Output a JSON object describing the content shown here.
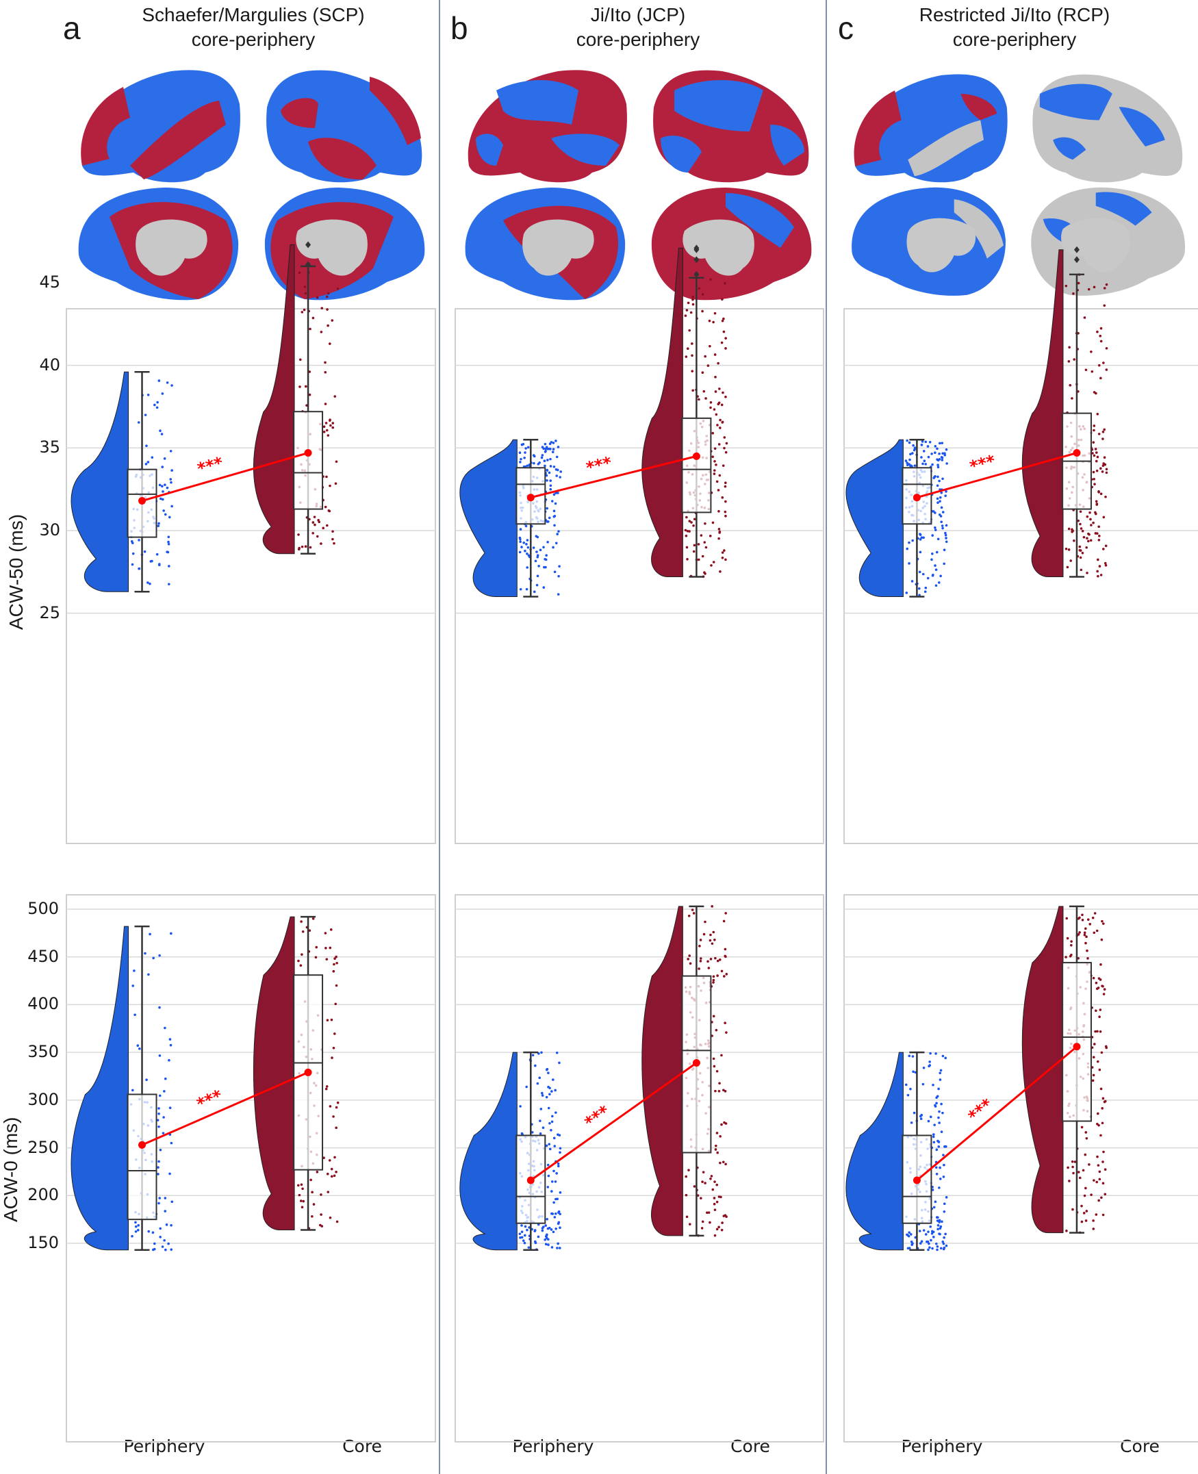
{
  "panels": [
    {
      "letter": "a",
      "title_line1": "Schaefer/Margulies (SCP)",
      "title_line2": "core-periphery"
    },
    {
      "letter": "b",
      "title_line1": "Ji/Ito (JCP)",
      "title_line2": "core-periphery"
    },
    {
      "letter": "c",
      "title_line1": "Restricted Ji/Ito (RCP)",
      "title_line2": "core-periphery"
    }
  ],
  "colors": {
    "periphery": "#2160db",
    "core": "#8b1630",
    "brain_periphery": "#2b6ee8",
    "brain_core": "#b3213f",
    "brain_medial_wall": "#c8c8c8",
    "brain_unassigned": "#c4c4c4",
    "mean_line": "#ff0000",
    "grid": "#d9d9d9",
    "divider": "#7c8fae"
  },
  "axes": {
    "top_ylabel": "ACW-50 (ms)",
    "top_yticks": [
      "45",
      "40",
      "35",
      "30",
      "25"
    ],
    "bottom_ylabel": "ACW-0 (ms)",
    "bottom_yticks": [
      "500",
      "450",
      "400",
      "350",
      "300",
      "250",
      "200",
      "150"
    ],
    "xticks": [
      "Periphery",
      "Core"
    ]
  },
  "significance_label": "***",
  "chart_data": [
    {
      "type": "raincloud",
      "panel": "a",
      "title": "Schaefer/Margulies (SCP) core-periphery",
      "ylabel": "ACW-50 (ms)",
      "ylim": [
        25,
        47.5
      ],
      "categories": [
        "Periphery",
        "Core"
      ],
      "series": [
        {
          "name": "Periphery",
          "whisker_low": 26.3,
          "q1": 29.6,
          "median": 32.2,
          "q3": 33.7,
          "whisker_high": 39.6,
          "mean": 31.8,
          "outliers": []
        },
        {
          "name": "Core",
          "whisker_low": 28.6,
          "q1": 31.3,
          "median": 33.5,
          "q3": 37.2,
          "whisker_high": 46.0,
          "mean": 34.7,
          "outliers": [
            46.1,
            47.3
          ]
        }
      ],
      "annotation": "***"
    },
    {
      "type": "raincloud",
      "panel": "b",
      "title": "Ji/Ito (JCP) core-periphery",
      "ylabel": "ACW-50 (ms)",
      "ylim": [
        25,
        47.5
      ],
      "categories": [
        "Periphery",
        "Core"
      ],
      "series": [
        {
          "name": "Periphery",
          "whisker_low": 26.0,
          "q1": 30.4,
          "median": 32.8,
          "q3": 33.8,
          "whisker_high": 35.5,
          "mean": 32.0,
          "outliers": []
        },
        {
          "name": "Core",
          "whisker_low": 27.2,
          "q1": 31.1,
          "median": 33.7,
          "q3": 36.8,
          "whisker_high": 45.3,
          "mean": 34.5,
          "outliers": [
            45.5,
            46.4,
            47.0,
            47.1
          ]
        }
      ],
      "annotation": "***"
    },
    {
      "type": "raincloud",
      "panel": "c",
      "title": "Restricted Ji/Ito (RCP) core-periphery",
      "ylabel": "ACW-50 (ms)",
      "ylim": [
        25,
        47.5
      ],
      "categories": [
        "Periphery",
        "Core"
      ],
      "series": [
        {
          "name": "Periphery",
          "whisker_low": 26.0,
          "q1": 30.4,
          "median": 32.8,
          "q3": 33.8,
          "whisker_high": 35.5,
          "mean": 32.0,
          "outliers": []
        },
        {
          "name": "Core",
          "whisker_low": 27.2,
          "q1": 31.3,
          "median": 34.2,
          "q3": 37.1,
          "whisker_high": 45.5,
          "mean": 34.7,
          "outliers": [
            46.4,
            47.0
          ]
        }
      ],
      "annotation": "***"
    },
    {
      "type": "raincloud",
      "panel": "a",
      "ylabel": "ACW-0 (ms)",
      "ylim": [
        125,
        520
      ],
      "categories": [
        "Periphery",
        "Core"
      ],
      "series": [
        {
          "name": "Periphery",
          "whisker_low": 143,
          "q1": 175,
          "median": 226,
          "q3": 306,
          "whisker_high": 482,
          "mean": 253
        },
        {
          "name": "Core",
          "whisker_low": 164,
          "q1": 227,
          "median": 339,
          "q3": 431,
          "whisker_high": 492,
          "mean": 329
        }
      ],
      "annotation": "***"
    },
    {
      "type": "raincloud",
      "panel": "b",
      "ylabel": "ACW-0 (ms)",
      "ylim": [
        125,
        520
      ],
      "categories": [
        "Periphery",
        "Core"
      ],
      "series": [
        {
          "name": "Periphery",
          "whisker_low": 143,
          "q1": 171,
          "median": 199,
          "q3": 263,
          "whisker_high": 350,
          "mean": 216
        },
        {
          "name": "Core",
          "whisker_low": 158,
          "q1": 245,
          "median": 352,
          "q3": 430,
          "whisker_high": 503,
          "mean": 339
        }
      ],
      "annotation": "***"
    },
    {
      "type": "raincloud",
      "panel": "c",
      "ylabel": "ACW-0 (ms)",
      "ylim": [
        125,
        520
      ],
      "categories": [
        "Periphery",
        "Core"
      ],
      "series": [
        {
          "name": "Periphery",
          "whisker_low": 143,
          "q1": 171,
          "median": 199,
          "q3": 263,
          "whisker_high": 350,
          "mean": 216
        },
        {
          "name": "Core",
          "whisker_low": 161,
          "q1": 278,
          "median": 366,
          "q3": 444,
          "whisker_high": 503,
          "mean": 356
        }
      ],
      "annotation": "***"
    }
  ]
}
